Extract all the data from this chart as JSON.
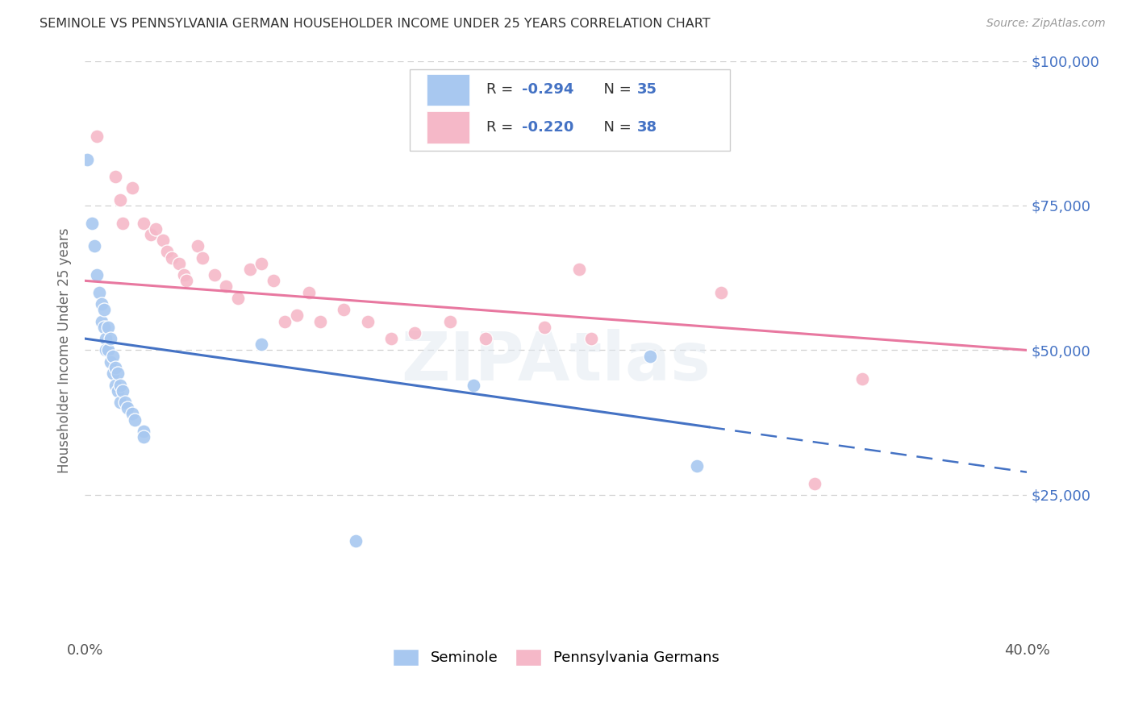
{
  "title": "SEMINOLE VS PENNSYLVANIA GERMAN HOUSEHOLDER INCOME UNDER 25 YEARS CORRELATION CHART",
  "source": "Source: ZipAtlas.com",
  "ylabel": "Householder Income Under 25 years",
  "x_min": 0.0,
  "x_max": 0.4,
  "y_min": 0,
  "y_max": 100000,
  "legend_r1": "R = -0.294",
  "legend_n1": "N = 35",
  "legend_r2": "R = -0.220",
  "legend_n2": "N = 38",
  "blue_color": "#a8c8f0",
  "pink_color": "#f5b8c8",
  "blue_line_color": "#4472c4",
  "pink_line_color": "#e878a0",
  "blue_scatter": [
    [
      0.001,
      83000
    ],
    [
      0.003,
      72000
    ],
    [
      0.004,
      68000
    ],
    [
      0.005,
      63000
    ],
    [
      0.006,
      60000
    ],
    [
      0.007,
      58000
    ],
    [
      0.007,
      55000
    ],
    [
      0.008,
      57000
    ],
    [
      0.008,
      54000
    ],
    [
      0.009,
      52000
    ],
    [
      0.009,
      50000
    ],
    [
      0.01,
      54000
    ],
    [
      0.01,
      50000
    ],
    [
      0.011,
      52000
    ],
    [
      0.011,
      48000
    ],
    [
      0.012,
      49000
    ],
    [
      0.012,
      46000
    ],
    [
      0.013,
      47000
    ],
    [
      0.013,
      44000
    ],
    [
      0.014,
      46000
    ],
    [
      0.014,
      43000
    ],
    [
      0.015,
      44000
    ],
    [
      0.015,
      41000
    ],
    [
      0.016,
      43000
    ],
    [
      0.017,
      41000
    ],
    [
      0.018,
      40000
    ],
    [
      0.02,
      39000
    ],
    [
      0.021,
      38000
    ],
    [
      0.025,
      36000
    ],
    [
      0.025,
      35000
    ],
    [
      0.075,
      51000
    ],
    [
      0.115,
      17000
    ],
    [
      0.165,
      44000
    ],
    [
      0.24,
      49000
    ],
    [
      0.26,
      30000
    ]
  ],
  "pink_scatter": [
    [
      0.005,
      87000
    ],
    [
      0.013,
      80000
    ],
    [
      0.015,
      76000
    ],
    [
      0.016,
      72000
    ],
    [
      0.02,
      78000
    ],
    [
      0.025,
      72000
    ],
    [
      0.028,
      70000
    ],
    [
      0.03,
      71000
    ],
    [
      0.033,
      69000
    ],
    [
      0.035,
      67000
    ],
    [
      0.037,
      66000
    ],
    [
      0.04,
      65000
    ],
    [
      0.042,
      63000
    ],
    [
      0.043,
      62000
    ],
    [
      0.048,
      68000
    ],
    [
      0.05,
      66000
    ],
    [
      0.055,
      63000
    ],
    [
      0.06,
      61000
    ],
    [
      0.065,
      59000
    ],
    [
      0.07,
      64000
    ],
    [
      0.075,
      65000
    ],
    [
      0.08,
      62000
    ],
    [
      0.085,
      55000
    ],
    [
      0.09,
      56000
    ],
    [
      0.095,
      60000
    ],
    [
      0.1,
      55000
    ],
    [
      0.11,
      57000
    ],
    [
      0.12,
      55000
    ],
    [
      0.13,
      52000
    ],
    [
      0.14,
      53000
    ],
    [
      0.155,
      55000
    ],
    [
      0.17,
      52000
    ],
    [
      0.195,
      54000
    ],
    [
      0.21,
      64000
    ],
    [
      0.215,
      52000
    ],
    [
      0.27,
      60000
    ],
    [
      0.31,
      27000
    ],
    [
      0.33,
      45000
    ]
  ],
  "background_color": "#ffffff",
  "grid_color": "#d0d0d0",
  "watermark": "ZIPAtlas"
}
